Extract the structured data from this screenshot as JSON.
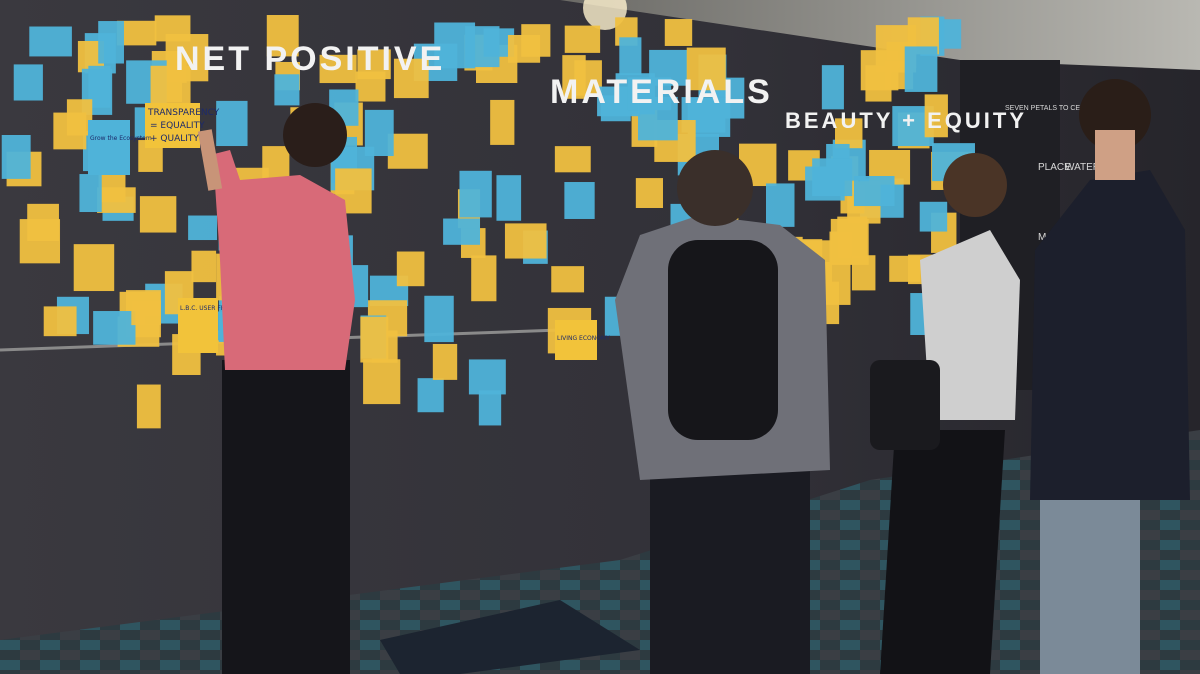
{
  "wall_headings": [
    "NET POSITIVE",
    "MATERIALS",
    "BEAUTY + EQUITY"
  ],
  "side_panel": {
    "title": "SEVEN PETALS TO CERTIFICATION",
    "petals": [
      "PLACE",
      "WATER",
      "MATERIALS"
    ]
  },
  "notes": [
    "TRANSPARENCY",
    "= EQUALITY",
    "+ QUALITY",
    "L.B.C. USER FRIENDLY FREE ACCESS",
    "Grow the Ecosystem",
    "LIVING ECONOMY"
  ]
}
